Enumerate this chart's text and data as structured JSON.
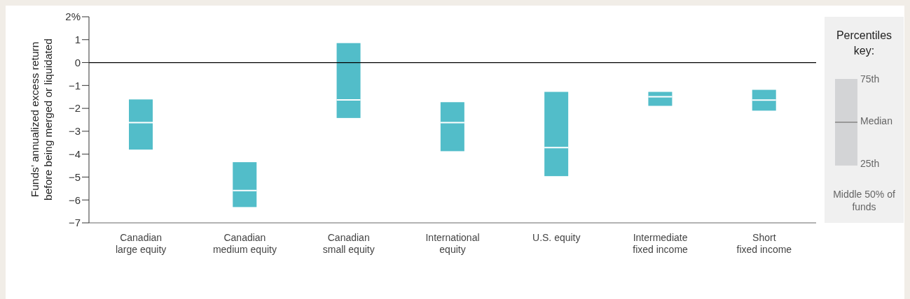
{
  "chart_data": {
    "type": "box",
    "ylabel": "Funds’ annualized excess return before being merged or liquidated",
    "categories": [
      "Canadian large equity",
      "Canadian medium equity",
      "Canadian small equity",
      "International equity",
      "U.S. equity",
      "Intermediate fixed income",
      "Short fixed income"
    ],
    "color": "#52bdc9",
    "boxes": [
      {
        "q1": -3.8,
        "median": -2.62,
        "q3": -1.61
      },
      {
        "q1": -6.31,
        "median": -5.59,
        "q3": -4.35
      },
      {
        "q1": -2.42,
        "median": -1.63,
        "q3": 0.85
      },
      {
        "q1": -3.87,
        "median": -2.62,
        "q3": -1.73
      },
      {
        "q1": -4.96,
        "median": -3.71,
        "q3": -1.28
      },
      {
        "q1": -1.89,
        "median": -1.49,
        "q3": -1.28
      },
      {
        "q1": -2.1,
        "median": -1.64,
        "q3": -1.19
      }
    ],
    "ylim": [
      -7,
      2
    ],
    "yticks": [
      -7,
      -6,
      -5,
      -4,
      -3,
      -2,
      -1,
      0,
      1,
      {
        "value": 2,
        "label": "2%"
      }
    ],
    "ref_lines": [
      {
        "axis": "y",
        "value": 0,
        "color": "#000000"
      }
    ],
    "grid": false,
    "legend_title": "Percentiles key:",
    "annotations": [
      "75th",
      "Median",
      "25th",
      "Middle 50% of funds"
    ]
  }
}
